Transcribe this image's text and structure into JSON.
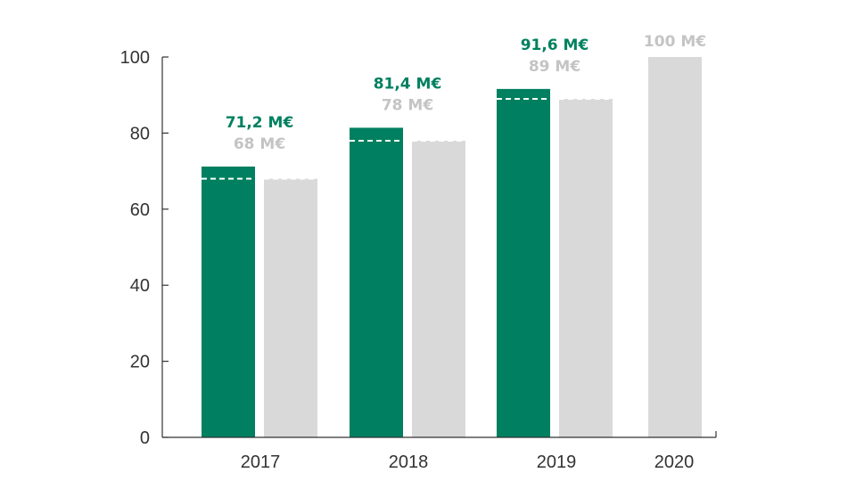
{
  "chart_data": {
    "type": "bar",
    "categories": [
      "2017",
      "2018",
      "2019",
      "2020"
    ],
    "series": [
      {
        "values": [
          71.2,
          81.4,
          91.6,
          null
        ],
        "labels": [
          "71,2 M€",
          "81,4 M€",
          "91,6 M€",
          ""
        ]
      },
      {
        "values": [
          68,
          78,
          89,
          100
        ],
        "labels": [
          "68 M€",
          "78 M€",
          "89 M€",
          "100 M€"
        ]
      }
    ],
    "reference_lines": [
      68,
      78,
      89
    ],
    "y_ticks": [
      "0",
      "20",
      "40",
      "60",
      "80",
      "100"
    ],
    "ylim": [
      0,
      100
    ],
    "grid": false,
    "legend": "none",
    "colors": {
      "actual": "#008060",
      "target": "#d9d9d9",
      "target_label": "#c4c4c4",
      "axis": "#333333",
      "reference_line": "#ffffff"
    }
  }
}
